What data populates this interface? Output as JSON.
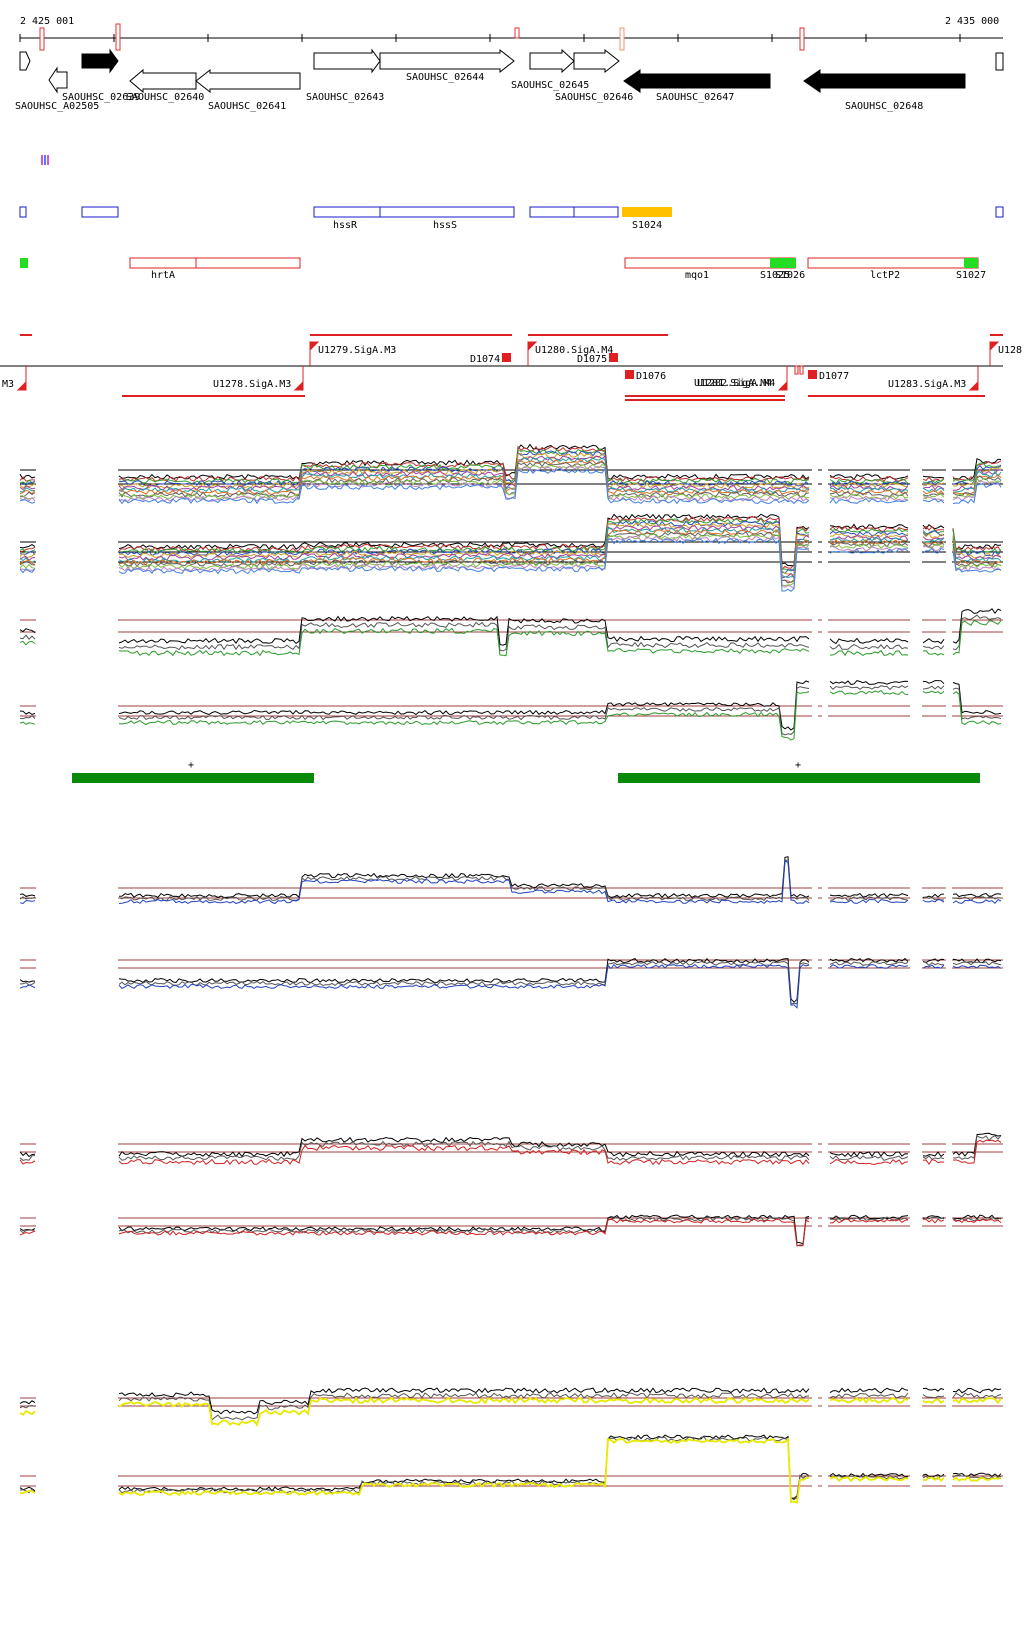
{
  "ruler": {
    "start_label": "2 425 001",
    "end_label": "2 435 000"
  },
  "annotated_genes": [
    "SAOUHSC_A02505",
    "SAOUHSC_02639",
    "SAOUHSC_02640",
    "SAOUHSC_02641",
    "SAOUHSC_02643",
    "SAOUHSC_02644",
    "SAOUHSC_02645",
    "SAOUHSC_02646",
    "SAOUHSC_02647",
    "SAOUHSC_02648"
  ],
  "gene_names": [
    "hssR",
    "hssS",
    "hrtA",
    "mqo1",
    "lctP2"
  ],
  "srnas": [
    "S1024",
    "S1025",
    "S1026",
    "S1027"
  ],
  "upshifts": [
    "M3",
    "U1278.SigA.M3",
    "U1279.SigA.M3",
    "U1280.SigA.M4",
    "U1281.SigA.M4",
    "U1282.SigA.M4",
    "U1283.SigA.M3",
    "U128"
  ],
  "downshifts": [
    "D1074",
    "D1075",
    "D1076",
    "D1077"
  ],
  "segment_marks": [
    "+",
    "+"
  ],
  "colors": {
    "forward_gene": "#ffffff",
    "strong_gene": "#000000",
    "cds_box": "#1a1acc",
    "operon_box": "#e02020",
    "srna": "#22dd22",
    "srna_orange": "#ffc000",
    "segment_bar": "#0a8a0a",
    "track_green": "#2a9a2a",
    "track_blue": "#2040c0",
    "track_red": "#d02020",
    "track_yellow": "#e8e800",
    "threshold_line": "#a04040"
  }
}
